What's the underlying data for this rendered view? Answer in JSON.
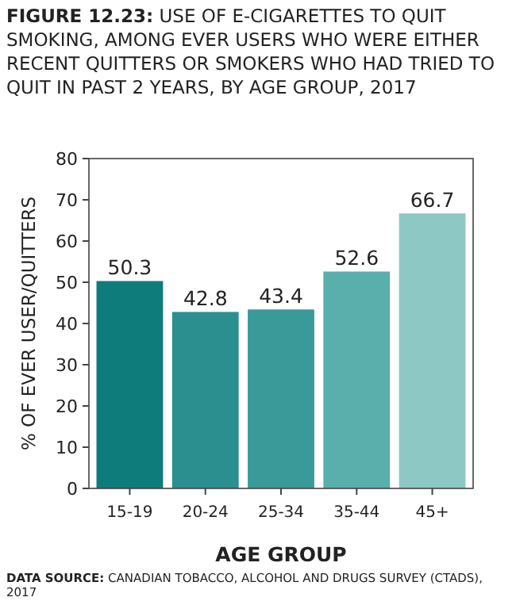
{
  "chart_data": {
    "type": "bar",
    "title": "FIGURE 12.23: USE OF E-CIGARETTES TO QUIT SMOKING, AMONG EVER USERS WHO WERE EITHER RECENT QUITTERS OR SMOKERS WHO HAD TRIED TO QUIT IN PAST 2 YEARS, BY AGE GROUP, 2017",
    "xlabel": "AGE GROUP",
    "ylabel": "% OF EVER USER/QUITTERS",
    "categories": [
      "15-19",
      "20-24",
      "25-34",
      "35-44",
      "45+"
    ],
    "values": [
      50.3,
      42.8,
      43.4,
      52.6,
      66.7
    ],
    "colors": [
      "#0e7c7b",
      "#2a8f8e",
      "#3a9a99",
      "#5aafad",
      "#8ec8c5"
    ],
    "ylim": [
      0,
      80
    ],
    "yticks": [
      0,
      10,
      20,
      30,
      40,
      50,
      60,
      70,
      80
    ],
    "data_labels": true,
    "grid": false,
    "annotations": [
      "DATA SOURCE: CANADIAN TOBACCO, ALCOHOL AND DRUGS SURVEY (CTADS), 2017"
    ]
  }
}
